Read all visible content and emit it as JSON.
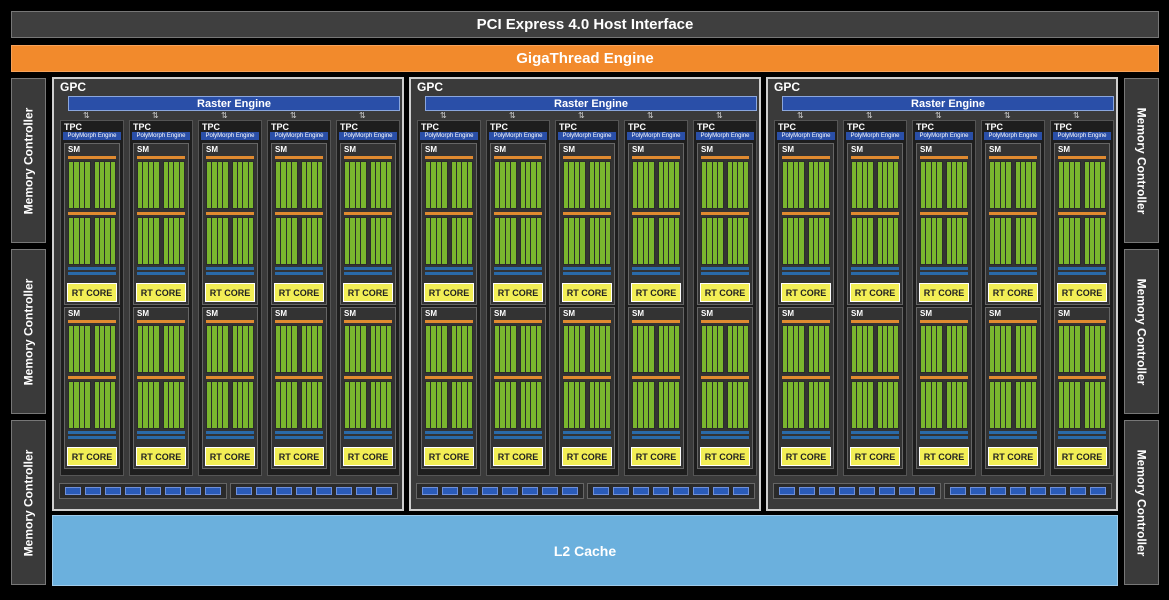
{
  "header": {
    "pcie": "PCI Express 4.0 Host Interface",
    "giga": "GigaThread Engine"
  },
  "memory_controllers": {
    "label": "Memory Controller"
  },
  "gpc": {
    "label": "GPC",
    "raster": "Raster Engine",
    "count": 3
  },
  "tpc": {
    "label": "TPC",
    "poly": "PolyMorph Engine",
    "count": 5
  },
  "sm": {
    "label": "SM",
    "rt": "RT CORE"
  },
  "l2": "L2 Cache",
  "colors": {
    "accent_orange": "#f28a2c",
    "blue": "#2a4fa8",
    "green": "#7ab62e",
    "yellow": "#f2ee55",
    "l2": "#6bb0dd"
  }
}
